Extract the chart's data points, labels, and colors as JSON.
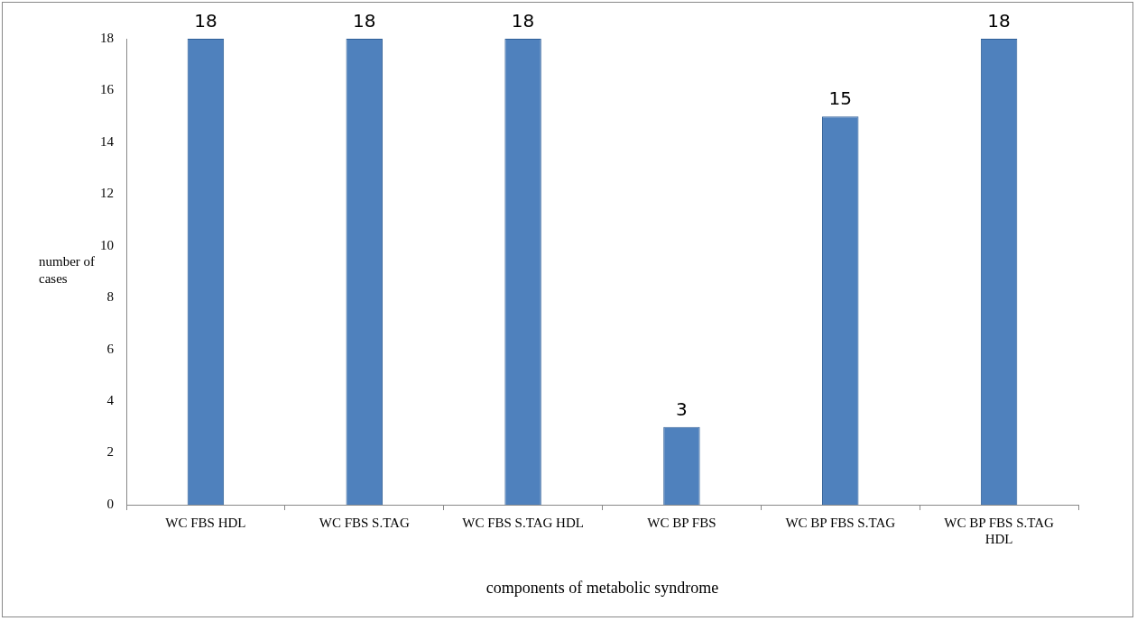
{
  "chart_data": {
    "type": "bar",
    "categories": [
      "WC FBS HDL",
      "WC FBS S.TAG",
      "WC FBS S.TAG HDL",
      "WC BP FBS",
      "WC BP FBS S.TAG",
      "WC BP FBS S.TAG HDL"
    ],
    "values": [
      18,
      18,
      18,
      3,
      15,
      18
    ],
    "color": "#4f81bd",
    "ylim": [
      0,
      18
    ],
    "yticks": [
      0,
      2,
      4,
      6,
      8,
      10,
      12,
      14,
      16,
      18
    ],
    "ylabel": "number of cases",
    "xlabel": "components of metabolic syndrome",
    "data_labels": true,
    "grid": false,
    "legend": false
  }
}
